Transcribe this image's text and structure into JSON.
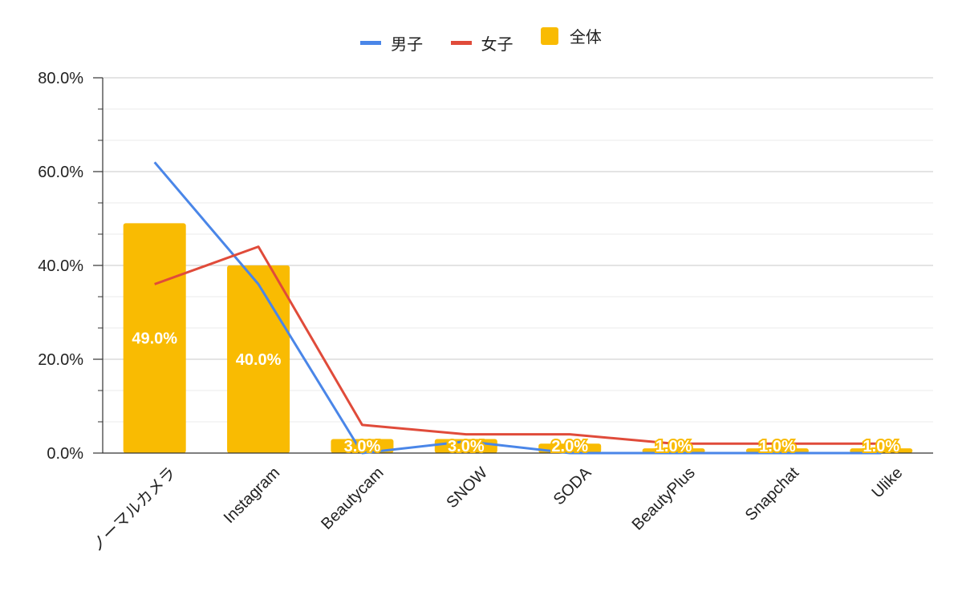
{
  "chart_data": {
    "type": "bar",
    "categories": [
      "ノーマルカメラ",
      "Instagram",
      "Beautycam",
      "SNOW",
      "SODA",
      "BeautyPlus",
      "Snapchat",
      "Ulike"
    ],
    "series": [
      {
        "name": "全体",
        "type": "bar",
        "color": "#f9bb02",
        "values": [
          49.0,
          40.0,
          3.0,
          3.0,
          2.0,
          1.0,
          1.0,
          1.0
        ],
        "labels": [
          "49.0%",
          "40.0%",
          "3.0%",
          "3.0%",
          "2.0%",
          "1.0%",
          "1.0%",
          "1.0%"
        ]
      },
      {
        "name": "男子",
        "type": "line",
        "color": "#4a86e8",
        "values": [
          62,
          36,
          0,
          2.5,
          0,
          0,
          0,
          0
        ]
      },
      {
        "name": "女子",
        "type": "line",
        "color": "#e04b3a",
        "values": [
          36,
          44,
          6,
          4,
          4,
          2,
          2,
          2
        ]
      }
    ],
    "yticks": [
      "0.0%",
      "20.0%",
      "40.0%",
      "60.0%",
      "80.0%"
    ],
    "ylim": [
      0,
      80
    ],
    "grid": true,
    "legend_position": "top"
  }
}
